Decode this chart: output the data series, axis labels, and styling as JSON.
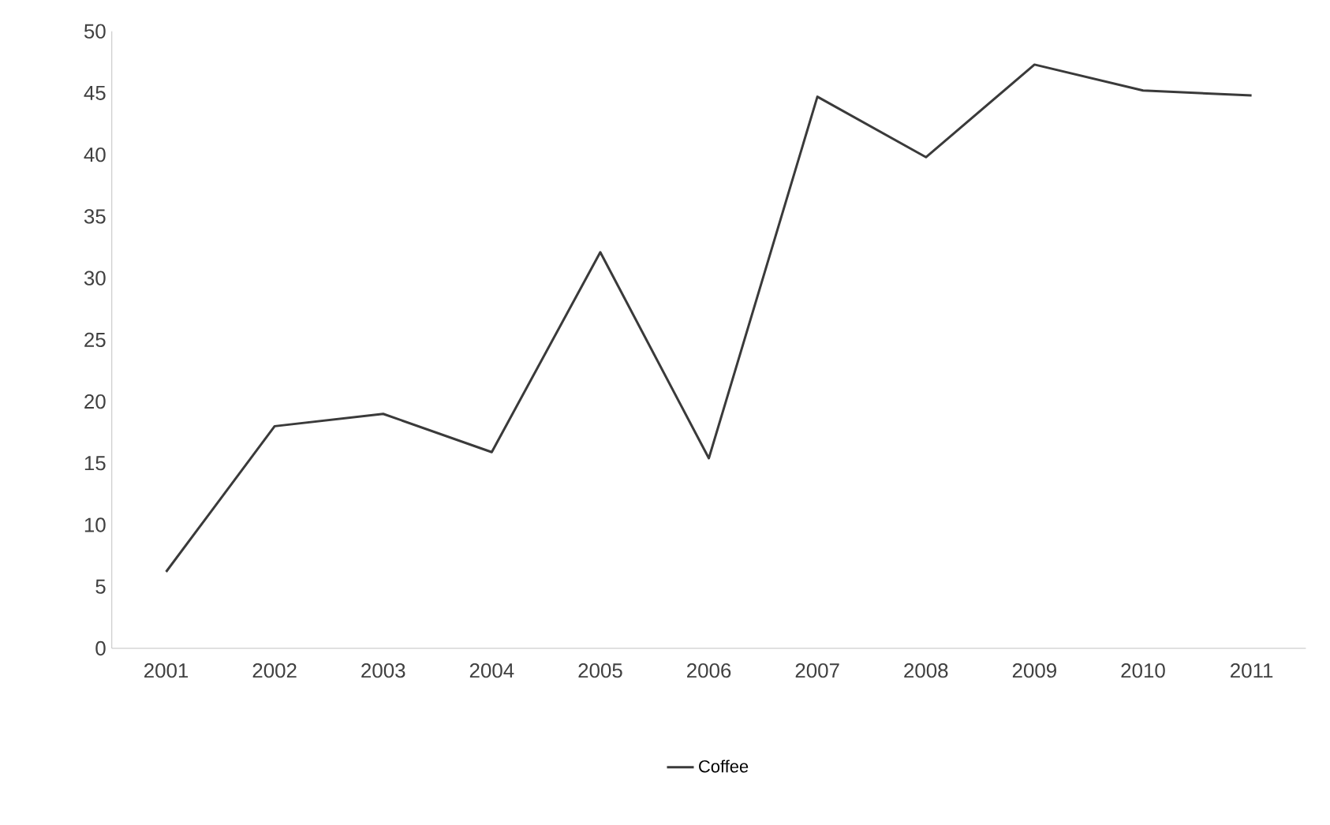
{
  "chart_data": {
    "type": "line",
    "categories": [
      "2001",
      "2002",
      "2003",
      "2004",
      "2005",
      "2006",
      "2007",
      "2008",
      "2009",
      "2010",
      "2011"
    ],
    "series": [
      {
        "name": "Coffee",
        "color": "#3a3a3a",
        "values": [
          6.2,
          18.0,
          19.0,
          15.9,
          32.1,
          15.4,
          44.7,
          39.8,
          47.3,
          45.2,
          44.8
        ]
      }
    ],
    "ylim": [
      0,
      50
    ],
    "yticks": [
      0,
      5,
      10,
      15,
      20,
      25,
      30,
      35,
      40,
      45,
      50
    ],
    "grid": false,
    "legend": "bottom",
    "marker": "none",
    "line_style": "solid"
  }
}
